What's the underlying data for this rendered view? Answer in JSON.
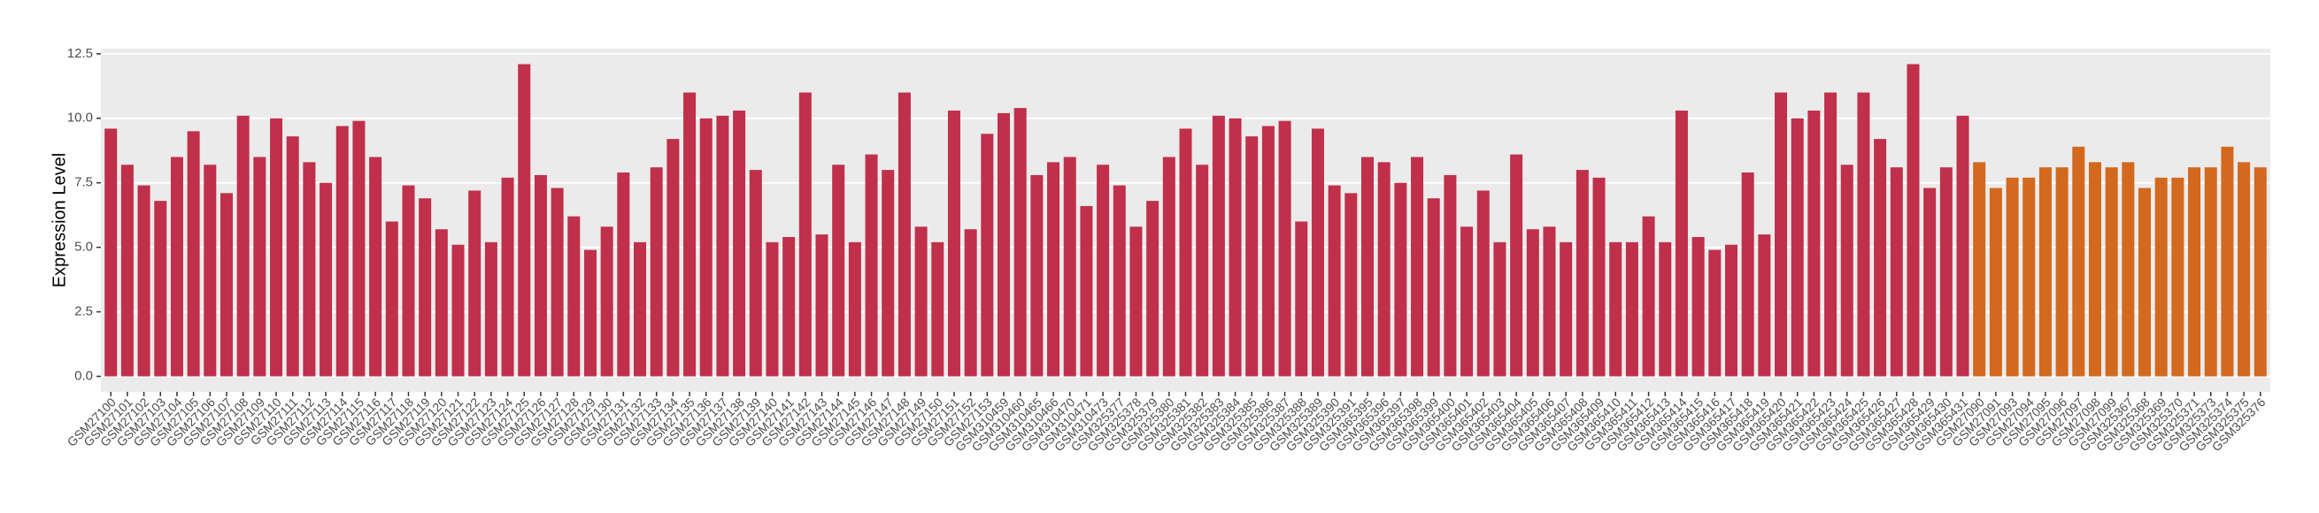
{
  "chart_data": {
    "type": "bar",
    "y_label": "Expression Level",
    "categories": [
      "GSM27100",
      "GSM27101",
      "GSM27102",
      "GSM27103",
      "GSM27104",
      "GSM27105",
      "GSM27106",
      "GSM27107",
      "GSM27108",
      "GSM27109",
      "GSM27110",
      "GSM27111",
      "GSM27112",
      "GSM27113",
      "GSM27114",
      "GSM27115",
      "GSM27116",
      "GSM27117",
      "GSM27118",
      "GSM27119",
      "GSM27120",
      "GSM27121",
      "GSM27122",
      "GSM27123",
      "GSM27124",
      "GSM27125",
      "GSM27126",
      "GSM27127",
      "GSM27128",
      "GSM27129",
      "GSM27130",
      "GSM27131",
      "GSM27132",
      "GSM27133",
      "GSM27134",
      "GSM27135",
      "GSM27136",
      "GSM27137",
      "GSM27138",
      "GSM27139",
      "GSM27140",
      "GSM27141",
      "GSM27142",
      "GSM27143",
      "GSM27144",
      "GSM27145",
      "GSM27146",
      "GSM27147",
      "GSM27148",
      "GSM27149",
      "GSM27150",
      "GSM27151",
      "GSM27152",
      "GSM27153",
      "GSM310459",
      "GSM310460",
      "GSM310465",
      "GSM310466",
      "GSM310470",
      "GSM310471",
      "GSM310473",
      "GSM325377",
      "GSM325378",
      "GSM325379",
      "GSM325380",
      "GSM325381",
      "GSM325382",
      "GSM325383",
      "GSM325384",
      "GSM325385",
      "GSM325386",
      "GSM325387",
      "GSM325388",
      "GSM325389",
      "GSM325390",
      "GSM325391",
      "GSM365395",
      "GSM365396",
      "GSM365397",
      "GSM365398",
      "GSM365399",
      "GSM365400",
      "GSM365401",
      "GSM365402",
      "GSM365403",
      "GSM365404",
      "GSM365405",
      "GSM365406",
      "GSM365407",
      "GSM365408",
      "GSM365409",
      "GSM365410",
      "GSM365411",
      "GSM365412",
      "GSM365413",
      "GSM365414",
      "GSM365415",
      "GSM365416",
      "GSM365417",
      "GSM365418",
      "GSM365419",
      "GSM365420",
      "GSM365421",
      "GSM365422",
      "GSM365423",
      "GSM365424",
      "GSM365425",
      "GSM365426",
      "GSM365427",
      "GSM365428",
      "GSM365429",
      "GSM365430",
      "GSM365431",
      "GSM27090",
      "GSM27091",
      "GSM27093",
      "GSM27094",
      "GSM27095",
      "GSM27096",
      "GSM27097",
      "GSM27098",
      "GSM27099",
      "GSM325367",
      "GSM325368",
      "GSM325369",
      "GSM325370",
      "GSM325371",
      "GSM325373",
      "GSM325374",
      "GSM325375",
      "GSM325376"
    ],
    "values": [
      9.6,
      8.2,
      7.4,
      6.8,
      8.5,
      9.5,
      8.2,
      7.1,
      10.1,
      8.5,
      10.0,
      9.3,
      8.3,
      7.5,
      9.7,
      9.9,
      8.5,
      6.0,
      7.4,
      6.9,
      5.7,
      5.1,
      7.2,
      5.2,
      7.7,
      12.1,
      7.8,
      7.3,
      6.2,
      4.9,
      5.8,
      7.9,
      5.2,
      8.1,
      9.2,
      11.0,
      10.0,
      10.1,
      10.3,
      8.0,
      5.2,
      5.4,
      11.0,
      5.5,
      8.2,
      5.2,
      8.6,
      8.0,
      11.0,
      5.8,
      5.2,
      10.3,
      5.7,
      9.4,
      10.2,
      10.4,
      7.8,
      8.3,
      8.5,
      6.6,
      8.2,
      7.4,
      5.8,
      6.8,
      8.5,
      9.6,
      8.2,
      10.1,
      10.0,
      9.3,
      9.7,
      9.9,
      6.0,
      9.6,
      7.4,
      7.1,
      8.5,
      8.3,
      7.5,
      8.5,
      6.9,
      7.8,
      5.8,
      7.2,
      5.2,
      8.6,
      5.7,
      5.8,
      5.2,
      8.0,
      7.7,
      5.2,
      5.2,
      6.2,
      5.2,
      10.3,
      5.4,
      4.9,
      5.1,
      7.9,
      5.5,
      11.0,
      10.0,
      10.3,
      11.0,
      8.2,
      11.0,
      9.2,
      8.1,
      12.1,
      7.3,
      8.1,
      10.1,
      8.3,
      7.3,
      7.7,
      7.7,
      8.1,
      8.1,
      8.9,
      8.3,
      8.1,
      8.3,
      7.3,
      7.7,
      7.7,
      8.1,
      8.1,
      8.9,
      8.3,
      8.1
    ],
    "colors": [
      "#c0304a",
      "#c0304a",
      "#c0304a",
      "#c0304a",
      "#c0304a",
      "#c0304a",
      "#c0304a",
      "#c0304a",
      "#c0304a",
      "#c0304a",
      "#c0304a",
      "#c0304a",
      "#c0304a",
      "#c0304a",
      "#c0304a",
      "#c0304a",
      "#c0304a",
      "#c0304a",
      "#c0304a",
      "#c0304a",
      "#c0304a",
      "#c0304a",
      "#c0304a",
      "#c0304a",
      "#c0304a",
      "#c0304a",
      "#c0304a",
      "#c0304a",
      "#c0304a",
      "#c0304a",
      "#c0304a",
      "#c0304a",
      "#c0304a",
      "#c0304a",
      "#c0304a",
      "#c0304a",
      "#c0304a",
      "#c0304a",
      "#c0304a",
      "#c0304a",
      "#c0304a",
      "#c0304a",
      "#c0304a",
      "#c0304a",
      "#c0304a",
      "#c0304a",
      "#c0304a",
      "#c0304a",
      "#c0304a",
      "#c0304a",
      "#c0304a",
      "#c0304a",
      "#c0304a",
      "#c0304a",
      "#c0304a",
      "#c0304a",
      "#c0304a",
      "#c0304a",
      "#c0304a",
      "#c0304a",
      "#c0304a",
      "#c0304a",
      "#c0304a",
      "#c0304a",
      "#c0304a",
      "#c0304a",
      "#c0304a",
      "#c0304a",
      "#c0304a",
      "#c0304a",
      "#c0304a",
      "#c0304a",
      "#c0304a",
      "#c0304a",
      "#c0304a",
      "#c0304a",
      "#c0304a",
      "#c0304a",
      "#c0304a",
      "#c0304a",
      "#c0304a",
      "#c0304a",
      "#c0304a",
      "#c0304a",
      "#c0304a",
      "#c0304a",
      "#c0304a",
      "#c0304a",
      "#c0304a",
      "#c0304a",
      "#c0304a",
      "#c0304a",
      "#c0304a",
      "#c0304a",
      "#c0304a",
      "#c0304a",
      "#c0304a",
      "#c0304a",
      "#c0304a",
      "#c0304a",
      "#c0304a",
      "#c0304a",
      "#c0304a",
      "#c0304a",
      "#c0304a",
      "#c0304a",
      "#c0304a",
      "#c0304a",
      "#c0304a",
      "#c0304a",
      "#c0304a",
      "#c0304a",
      "#c0304a",
      "#d2691e",
      "#d2691e",
      "#d2691e",
      "#d2691e",
      "#d2691e",
      "#d2691e",
      "#d2691e",
      "#d2691e",
      "#d2691e",
      "#d2691e",
      "#d2691e",
      "#d2691e",
      "#d2691e",
      "#d2691e",
      "#d2691e",
      "#d2691e",
      "#d2691e",
      "#d2691e"
    ],
    "ylim": [
      -0.6,
      12.7
    ],
    "yticks": [
      {
        "value": 0,
        "label": "0.0"
      },
      2.5,
      {
        "value": 5,
        "label": "5.0"
      },
      7.5,
      {
        "value": 10,
        "label": "10.0"
      },
      12.5
    ],
    "grid": true
  }
}
